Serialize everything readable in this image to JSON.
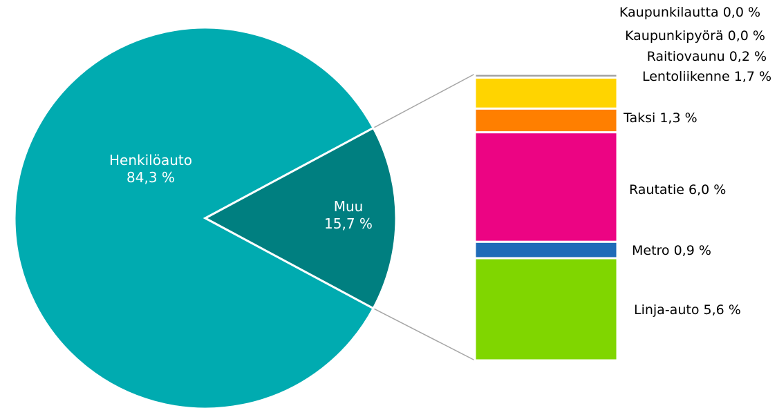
{
  "chart_data": {
    "type": "bar-of-pie",
    "pie": {
      "slices": [
        {
          "name": "Henkilöauto",
          "value": 84.3,
          "value_label": "84,3 %",
          "color": "#00ABB0"
        },
        {
          "name": "Muu",
          "value": 15.7,
          "value_label": "15,7 %",
          "color": "#007F80"
        }
      ]
    },
    "breakdown": {
      "parent": "Muu",
      "segments": [
        {
          "name": "Linja-auto",
          "value": 5.6,
          "label": "Linja-auto 5,6 %",
          "color": "#80D600"
        },
        {
          "name": "Metro",
          "value": 0.9,
          "label": "Metro 0,9 %",
          "color": "#1F6BB8"
        },
        {
          "name": "Rautatie",
          "value": 6.0,
          "label": "Rautatie 6,0 %",
          "color": "#EC0483"
        },
        {
          "name": "Taksi",
          "value": 1.3,
          "label": "Taksi 1,3 %",
          "color": "#FF7F00"
        },
        {
          "name": "Lentoliikenne",
          "value": 1.7,
          "label": "Lentoliikenne 1,7 %",
          "color": "#FFD400"
        },
        {
          "name": "Raitiovaunu",
          "value": 0.2,
          "label": "Raitiovaunu 0,2 %",
          "color": "#9E9E9E"
        },
        {
          "name": "Kaupunkipyörä",
          "value": 0.0,
          "label": "Kaupunkipyörä 0,0 %",
          "color": "#B0B0B0"
        },
        {
          "name": "Kaupunkilautta",
          "value": 0.0,
          "label": "Kaupunkilautta 0,0 %",
          "color": "#C0C0C0"
        }
      ]
    },
    "connector_color": "#A6A6A6"
  }
}
